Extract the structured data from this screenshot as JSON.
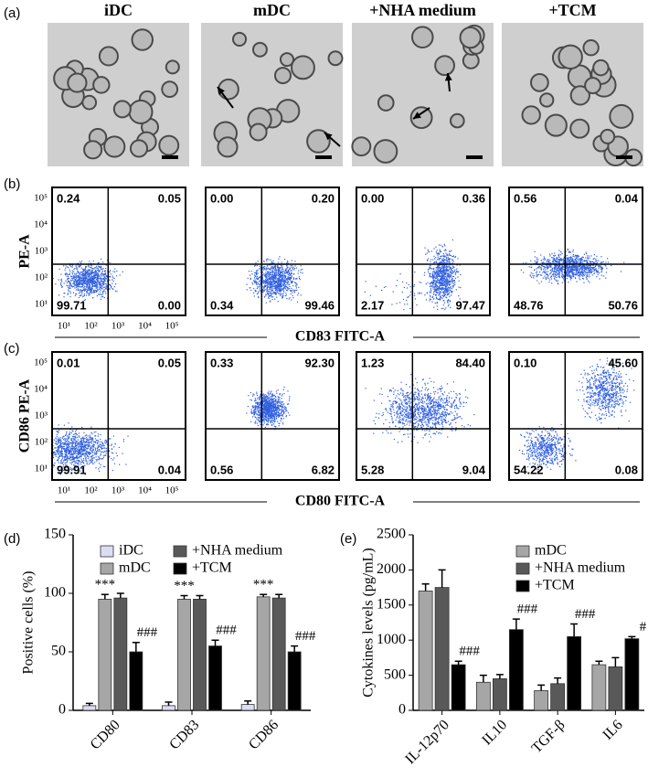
{
  "panel_labels": [
    "(a)",
    "(b)",
    "(c)",
    "(d)",
    "(e)"
  ],
  "conditions": [
    "iDC",
    "mDC",
    "+NHA medium",
    "+TCM"
  ],
  "flow_ticks": [
    "10¹",
    "10²",
    "10³",
    "10⁴",
    "10⁵"
  ],
  "flow": [
    {
      "y_label": "PE-A",
      "x_label": "CD83 FITC-A",
      "quadrants": [
        [
          "0.24",
          "0.05",
          "99.71",
          "0.00"
        ],
        [
          "0.00",
          "0.20",
          "0.34",
          "99.46"
        ],
        [
          "0.00",
          "0.36",
          "2.17",
          "97.47"
        ],
        [
          "0.56",
          "0.04",
          "48.76",
          "50.76"
        ]
      ]
    },
    {
      "y_label": "CD86 PE-A",
      "x_label": "CD80 FITC-A",
      "quadrants": [
        [
          "0.01",
          "0.05",
          "99.91",
          "0.04"
        ],
        [
          "0.33",
          "92.30",
          "0.56",
          "6.82"
        ],
        [
          "1.23",
          "84.40",
          "5.28",
          "9.04"
        ],
        [
          "0.10",
          "45.60",
          "54.22",
          "0.08"
        ]
      ]
    }
  ],
  "chart_data": [
    {
      "type": "bar",
      "y_label": "Positive cells (%)",
      "categories": [
        "CD80",
        "CD83",
        "CD86"
      ],
      "ylim": [
        0,
        150
      ],
      "yticks": [
        0,
        50,
        100,
        150
      ],
      "series": [
        {
          "name": "iDC",
          "color": "#dcdcf2",
          "values": [
            4,
            4,
            5
          ],
          "errors": [
            2,
            3,
            3
          ]
        },
        {
          "name": "mDC",
          "color": "#a6a6a6",
          "values": [
            95,
            95,
            97
          ],
          "errors": [
            4,
            3,
            2
          ],
          "annotations": [
            "***",
            "***",
            "***"
          ]
        },
        {
          "name": "+NHA medium",
          "color": "#595959",
          "values": [
            96,
            95,
            96
          ],
          "errors": [
            4,
            3,
            3
          ]
        },
        {
          "name": "+TCM",
          "color": "#000000",
          "values": [
            50,
            55,
            50
          ],
          "errors": [
            8,
            5,
            5
          ],
          "annotations": [
            "###",
            "###",
            "###"
          ]
        }
      ]
    },
    {
      "type": "bar",
      "y_label": "Cytokines levels (pg/mL)",
      "categories": [
        "IL-12p70",
        "IL10",
        "TGF-β",
        "IL6"
      ],
      "ylim": [
        0,
        2500
      ],
      "yticks": [
        0,
        500,
        1000,
        1500,
        2000,
        2500
      ],
      "series": [
        {
          "name": "mDC",
          "color": "#a6a6a6",
          "values": [
            1700,
            400,
            280,
            650
          ],
          "errors": [
            100,
            100,
            80,
            50
          ]
        },
        {
          "name": "+NHA medium",
          "color": "#595959",
          "values": [
            1750,
            450,
            380,
            620
          ],
          "errors": [
            250,
            60,
            80,
            130
          ]
        },
        {
          "name": "+TCM",
          "color": "#000000",
          "values": [
            650,
            1150,
            1050,
            1020
          ],
          "errors": [
            50,
            150,
            180,
            30
          ],
          "annotations": [
            "###",
            "###",
            "###",
            "#"
          ]
        }
      ]
    }
  ]
}
